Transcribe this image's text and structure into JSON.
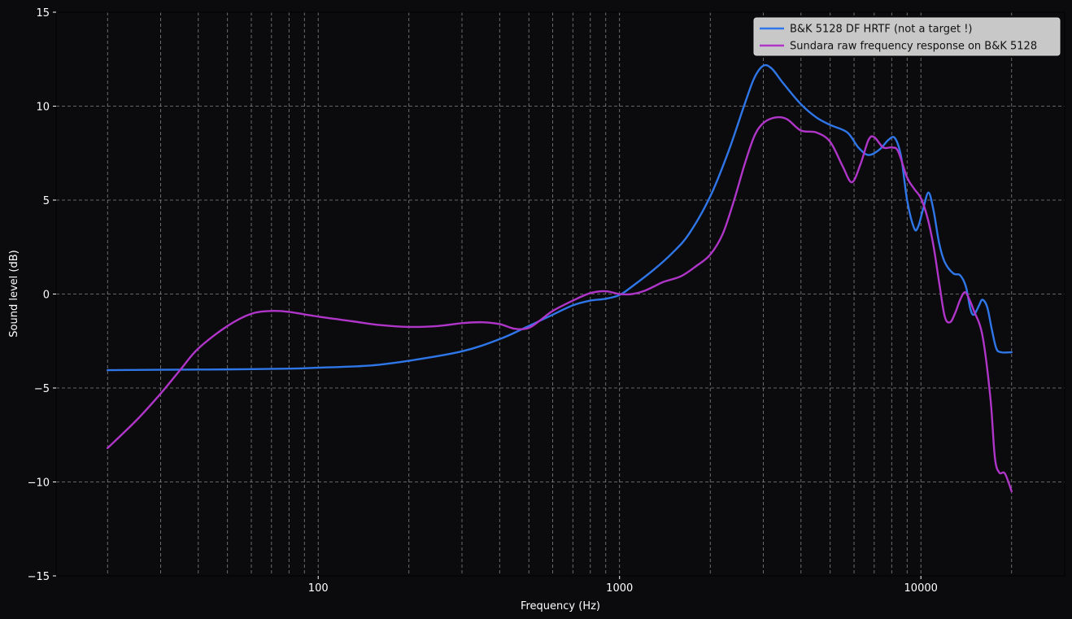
{
  "chart_data": {
    "type": "line",
    "xlabel": "Frequency (Hz)",
    "ylabel": "Sound level (dB)",
    "xscale": "log",
    "xlim": [
      13.5,
      30000
    ],
    "ylim": [
      -15,
      15
    ],
    "xticks": [
      {
        "value": 100,
        "label": "100"
      },
      {
        "value": 1000,
        "label": "1000"
      },
      {
        "value": 10000,
        "label": "10000"
      }
    ],
    "yticks": [
      {
        "value": 15,
        "label": "15"
      },
      {
        "value": 10,
        "label": "10"
      },
      {
        "value": 5,
        "label": "5"
      },
      {
        "value": 0,
        "label": "0"
      },
      {
        "value": -5,
        "label": "−5"
      },
      {
        "value": -10,
        "label": "−10"
      },
      {
        "value": -15,
        "label": "−15"
      }
    ],
    "grid": true,
    "legend_position": "top-right",
    "colors": {
      "background": "#0b0b0d",
      "grid": "#9a9a9a",
      "legend_bg": "#c8c8c8"
    },
    "series": [
      {
        "name": "B&K 5128 DF HRTF (not a target !)",
        "color": "#2f76e8",
        "points": [
          [
            20,
            -4.05
          ],
          [
            30,
            -4.03
          ],
          [
            50,
            -4.01
          ],
          [
            80,
            -3.97
          ],
          [
            100,
            -3.92
          ],
          [
            150,
            -3.8
          ],
          [
            200,
            -3.55
          ],
          [
            300,
            -3.05
          ],
          [
            400,
            -2.4
          ],
          [
            500,
            -1.7
          ],
          [
            600,
            -1.1
          ],
          [
            700,
            -0.6
          ],
          [
            800,
            -0.35
          ],
          [
            900,
            -0.25
          ],
          [
            1000,
            -0.05
          ],
          [
            1100,
            0.4
          ],
          [
            1300,
            1.3
          ],
          [
            1500,
            2.2
          ],
          [
            1700,
            3.2
          ],
          [
            2000,
            5.2
          ],
          [
            2300,
            7.6
          ],
          [
            2600,
            10.1
          ],
          [
            2800,
            11.5
          ],
          [
            3000,
            12.15
          ],
          [
            3200,
            12.0
          ],
          [
            3500,
            11.2
          ],
          [
            4000,
            10.1
          ],
          [
            4500,
            9.4
          ],
          [
            5000,
            9.0
          ],
          [
            5700,
            8.6
          ],
          [
            6200,
            7.8
          ],
          [
            6700,
            7.4
          ],
          [
            7300,
            7.7
          ],
          [
            7800,
            8.2
          ],
          [
            8200,
            8.3
          ],
          [
            8600,
            7.3
          ],
          [
            9000,
            5.0
          ],
          [
            9500,
            3.5
          ],
          [
            9800,
            3.6
          ],
          [
            10200,
            4.6
          ],
          [
            10600,
            5.4
          ],
          [
            11000,
            4.5
          ],
          [
            11500,
            2.7
          ],
          [
            12000,
            1.7
          ],
          [
            12800,
            1.1
          ],
          [
            13500,
            1.0
          ],
          [
            14100,
            0.4
          ],
          [
            14600,
            -0.8
          ],
          [
            15000,
            -1.1
          ],
          [
            15600,
            -0.6
          ],
          [
            16000,
            -0.3
          ],
          [
            16600,
            -0.7
          ],
          [
            17200,
            -1.9
          ],
          [
            17800,
            -2.9
          ],
          [
            18500,
            -3.1
          ],
          [
            20000,
            -3.1
          ]
        ]
      },
      {
        "name": "Sundara raw frequency response on B&K 5128",
        "color": "#b035c9",
        "points": [
          [
            20,
            -8.2
          ],
          [
            25,
            -6.7
          ],
          [
            30,
            -5.3
          ],
          [
            35,
            -4.0
          ],
          [
            40,
            -2.9
          ],
          [
            50,
            -1.7
          ],
          [
            60,
            -1.05
          ],
          [
            70,
            -0.9
          ],
          [
            80,
            -0.95
          ],
          [
            100,
            -1.2
          ],
          [
            130,
            -1.45
          ],
          [
            160,
            -1.65
          ],
          [
            200,
            -1.75
          ],
          [
            250,
            -1.7
          ],
          [
            300,
            -1.55
          ],
          [
            350,
            -1.5
          ],
          [
            400,
            -1.6
          ],
          [
            450,
            -1.85
          ],
          [
            500,
            -1.8
          ],
          [
            550,
            -1.35
          ],
          [
            600,
            -0.9
          ],
          [
            700,
            -0.35
          ],
          [
            800,
            0.05
          ],
          [
            900,
            0.15
          ],
          [
            1000,
            0.0
          ],
          [
            1100,
            0.0
          ],
          [
            1200,
            0.15
          ],
          [
            1300,
            0.4
          ],
          [
            1400,
            0.65
          ],
          [
            1600,
            0.95
          ],
          [
            1800,
            1.5
          ],
          [
            2000,
            2.1
          ],
          [
            2200,
            3.2
          ],
          [
            2400,
            5.0
          ],
          [
            2600,
            6.9
          ],
          [
            2800,
            8.4
          ],
          [
            3000,
            9.1
          ],
          [
            3300,
            9.4
          ],
          [
            3600,
            9.3
          ],
          [
            4000,
            8.7
          ],
          [
            4500,
            8.6
          ],
          [
            5000,
            8.1
          ],
          [
            5500,
            6.8
          ],
          [
            5900,
            5.95
          ],
          [
            6300,
            6.9
          ],
          [
            6700,
            8.2
          ],
          [
            7000,
            8.35
          ],
          [
            7500,
            7.8
          ],
          [
            8000,
            7.8
          ],
          [
            8400,
            7.6
          ],
          [
            9000,
            6.2
          ],
          [
            9500,
            5.6
          ],
          [
            10000,
            5.1
          ],
          [
            10500,
            4.1
          ],
          [
            11000,
            2.6
          ],
          [
            11500,
            0.6
          ],
          [
            12000,
            -1.2
          ],
          [
            12500,
            -1.5
          ],
          [
            13000,
            -1.0
          ],
          [
            13500,
            -0.3
          ],
          [
            14000,
            0.1
          ],
          [
            14500,
            -0.3
          ],
          [
            15000,
            -0.9
          ],
          [
            16000,
            -2.2
          ],
          [
            17000,
            -5.5
          ],
          [
            17600,
            -8.7
          ],
          [
            18200,
            -9.5
          ],
          [
            19000,
            -9.55
          ],
          [
            20000,
            -10.5
          ]
        ]
      }
    ]
  }
}
